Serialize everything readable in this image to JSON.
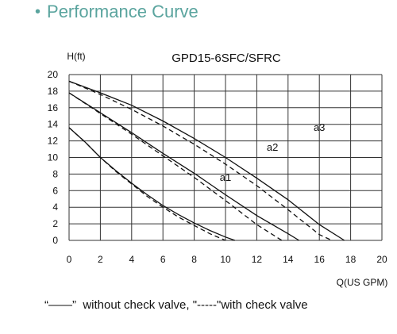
{
  "header": {
    "bullet": "•",
    "title": "Performance Curve"
  },
  "chart_data": {
    "type": "line",
    "title": "GPD15-6SFC/SFRC",
    "ylabel": "H(ft)",
    "xlabel": "Q(US GPM)",
    "xlim": [
      0,
      20
    ],
    "ylim": [
      0,
      20
    ],
    "xticks": [
      "0",
      "2",
      "4",
      "6",
      "8",
      "10",
      "12",
      "14",
      "16",
      "18",
      "20"
    ],
    "yticks": [
      "0",
      "2",
      "4",
      "6",
      "8",
      "10",
      "12",
      "14",
      "16",
      "18",
      "20"
    ],
    "grid": true,
    "series": [
      {
        "name": "a1",
        "style": "solid",
        "x": [
          0,
          1,
          2,
          3,
          4,
          5,
          6,
          7,
          8,
          9,
          10,
          10.6
        ],
        "y": [
          13.6,
          11.9,
          10.0,
          8.4,
          6.9,
          5.5,
          4.2,
          3.1,
          2.1,
          1.2,
          0.4,
          0
        ]
      },
      {
        "name": "a1",
        "style": "dashed",
        "x": [
          0,
          1,
          2,
          3,
          4,
          5,
          6,
          7,
          8,
          9,
          10
        ],
        "y": [
          13.6,
          11.9,
          10.0,
          8.3,
          6.8,
          5.3,
          4.0,
          2.8,
          1.8,
          0.8,
          0
        ]
      },
      {
        "name": "a2",
        "style": "solid",
        "x": [
          0,
          2,
          4,
          6,
          8,
          10,
          12,
          14,
          14.7
        ],
        "y": [
          17.8,
          15.4,
          13.0,
          10.5,
          8.1,
          5.5,
          3.0,
          0.8,
          0
        ]
      },
      {
        "name": "a2",
        "style": "dashed",
        "x": [
          0,
          2,
          4,
          6,
          8,
          10,
          12,
          13.6
        ],
        "y": [
          17.8,
          15.3,
          12.8,
          10.2,
          7.6,
          4.8,
          1.9,
          0
        ]
      },
      {
        "name": "a3",
        "style": "solid",
        "x": [
          0,
          2,
          4,
          6,
          8,
          10,
          12,
          14,
          16,
          17.6
        ],
        "y": [
          19.2,
          17.8,
          16.3,
          14.4,
          12.3,
          10.0,
          7.5,
          4.9,
          1.9,
          0
        ]
      },
      {
        "name": "a3",
        "style": "dashed",
        "x": [
          0,
          2,
          4,
          6,
          8,
          10,
          12,
          14,
          16,
          16.8
        ],
        "y": [
          19.2,
          17.6,
          15.8,
          13.8,
          11.6,
          9.2,
          6.6,
          3.7,
          0.7,
          0
        ]
      }
    ],
    "annotations": [
      {
        "text": "a1",
        "x": 10.0,
        "y": 7.2
      },
      {
        "text": "a2",
        "x": 13.0,
        "y": 10.8
      },
      {
        "text": "a3",
        "x": 16.0,
        "y": 13.2
      }
    ]
  },
  "footer": {
    "legend_text": "“——”  without check valve, \"-----\"with check valve"
  }
}
